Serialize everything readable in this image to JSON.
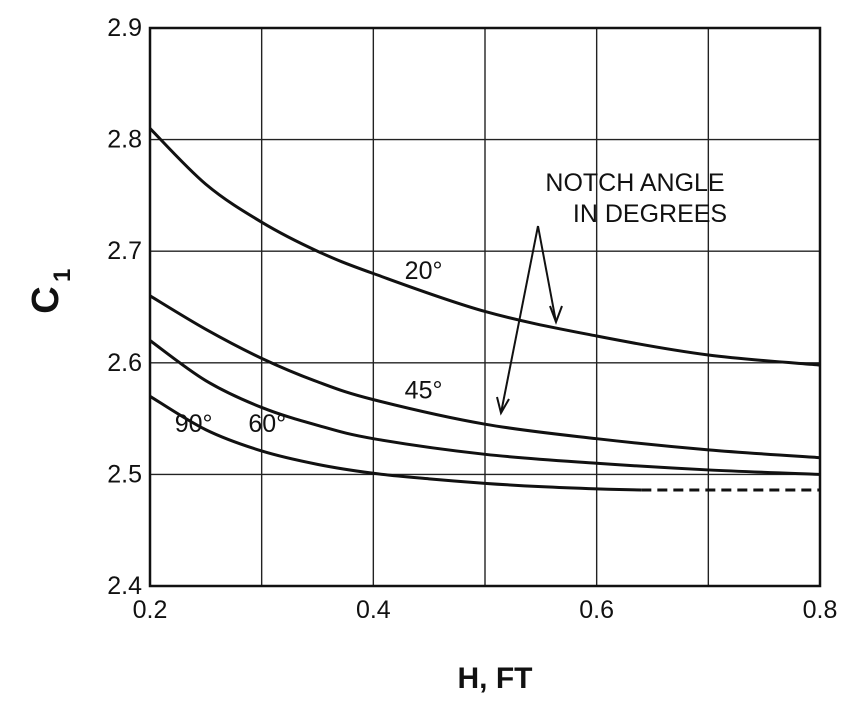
{
  "chart_data": {
    "type": "line",
    "xlabel": "H, FT",
    "ylabel": "C",
    "ylabel_subscript": "1",
    "xlim": [
      0.2,
      0.8
    ],
    "ylim": [
      2.4,
      2.9
    ],
    "grid": true,
    "x_ticks": [
      "0.2",
      "0.4",
      "0.6",
      "0.8"
    ],
    "y_ticks": [
      "2.4",
      "2.5",
      "2.6",
      "2.7",
      "2.8",
      "2.9"
    ],
    "annotation": [
      "NOTCH ANGLE",
      "IN DEGREES"
    ],
    "series": [
      {
        "name": "20°",
        "x": [
          0.2,
          0.25,
          0.3,
          0.35,
          0.4,
          0.5,
          0.6,
          0.7,
          0.8
        ],
        "y": [
          2.81,
          2.76,
          2.726,
          2.7,
          2.68,
          2.646,
          2.624,
          2.607,
          2.598
        ]
      },
      {
        "name": "45°",
        "x": [
          0.2,
          0.25,
          0.3,
          0.35,
          0.4,
          0.5,
          0.6,
          0.7,
          0.8
        ],
        "y": [
          2.66,
          2.63,
          2.604,
          2.583,
          2.567,
          2.545,
          2.532,
          2.522,
          2.515
        ]
      },
      {
        "name": "60°",
        "x": [
          0.2,
          0.25,
          0.3,
          0.35,
          0.4,
          0.5,
          0.6,
          0.7,
          0.8
        ],
        "y": [
          2.62,
          2.584,
          2.56,
          2.544,
          2.532,
          2.518,
          2.51,
          2.504,
          2.5
        ]
      },
      {
        "name": "90°",
        "x": [
          0.2,
          0.25,
          0.3,
          0.35,
          0.4,
          0.45,
          0.5,
          0.55,
          0.6,
          0.64
        ],
        "y": [
          2.57,
          2.54,
          2.521,
          2.509,
          2.501,
          2.496,
          2.492,
          2.489,
          2.487,
          2.486
        ],
        "dashed_extension": {
          "x": [
            0.64,
            0.8
          ],
          "y": [
            2.486,
            2.486
          ]
        }
      }
    ]
  }
}
